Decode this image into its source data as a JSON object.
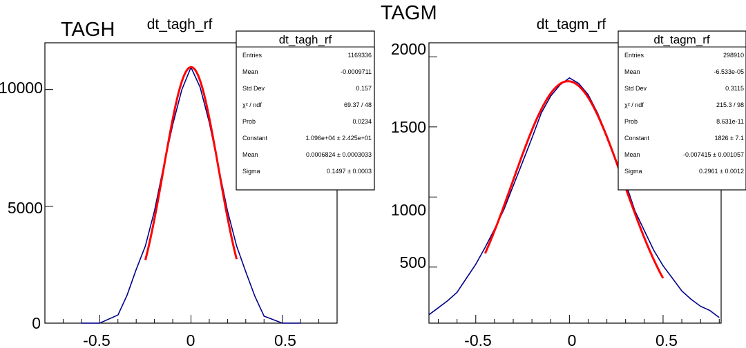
{
  "panels": [
    {
      "label": "TAGH",
      "title": "dt_tagh_rf",
      "y_tick_labels": [
        "0",
        "5000",
        "10000"
      ],
      "x_tick_labels": [
        "-0.5",
        "0",
        "0.5"
      ],
      "stats": {
        "title": "dt_tagh_rf",
        "rows": [
          {
            "name": "Entries",
            "value": "1169336"
          },
          {
            "name": "Mean",
            "value": "-0.0009711"
          },
          {
            "name": "Std Dev",
            "value": "0.157"
          },
          {
            "name": "χ² / ndf",
            "value": "69.37 / 48"
          },
          {
            "name": "Prob",
            "value": "0.0234"
          },
          {
            "name": "Constant",
            "value": "1.096e+04 ± 2.425e+01"
          },
          {
            "name": "Mean",
            "value": "0.0006824 ± 0.0003033"
          },
          {
            "name": "Sigma",
            "value": "0.1497 ± 0.0003"
          }
        ]
      }
    },
    {
      "label": "TAGM",
      "title": "dt_tagm_rf",
      "y_tick_labels": [
        "500",
        "1000",
        "1500",
        "2000"
      ],
      "x_tick_labels": [
        "-0.5",
        "0",
        "0.5"
      ],
      "stats": {
        "title": "dt_tagm_rf",
        "rows": [
          {
            "name": "Entries",
            "value": "298910"
          },
          {
            "name": "Mean",
            "value": "-6.533e-05"
          },
          {
            "name": "Std Dev",
            "value": "0.3115"
          },
          {
            "name": "χ² / ndf",
            "value": "215.3 / 98"
          },
          {
            "name": "Prob",
            "value": "8.631e-11"
          },
          {
            "name": "Constant",
            "value": "1826 ± 7.1"
          },
          {
            "name": "Mean",
            "value": "-0.007415 ± 0.001057"
          },
          {
            "name": "Sigma",
            "value": "0.2961 ± 0.0012"
          }
        ]
      }
    }
  ],
  "chart_data": [
    {
      "type": "histogram",
      "title": "dt_tagh_rf",
      "xlim": [
        -0.8,
        0.8
      ],
      "ylim": [
        0,
        12000
      ],
      "x_ticks": [
        -0.5,
        0,
        0.5
      ],
      "y_ticks": [
        0,
        5000,
        10000
      ],
      "hist_color": "#00008b",
      "fit_color": "#ff0000",
      "histogram": {
        "x": [
          -0.6,
          -0.5,
          -0.4,
          -0.35,
          -0.3,
          -0.25,
          -0.2,
          -0.15,
          -0.1,
          -0.05,
          0,
          0.05,
          0.1,
          0.15,
          0.2,
          0.25,
          0.3,
          0.35,
          0.4,
          0.5,
          0.6
        ],
        "y": [
          0,
          0,
          350,
          1200,
          2300,
          3300,
          4800,
          6700,
          8500,
          10000,
          10950,
          10100,
          8600,
          6700,
          4800,
          3300,
          2200,
          1150,
          300,
          0,
          0
        ]
      },
      "fit": {
        "function": "gaus",
        "constant": 10960,
        "mean": 0.0006824,
        "sigma": 0.1497,
        "range": [
          -0.25,
          0.25
        ]
      }
    },
    {
      "type": "histogram",
      "title": "dt_tagm_rf",
      "xlim": [
        -0.75,
        0.81
      ],
      "ylim": [
        100,
        2100
      ],
      "x_ticks": [
        -0.5,
        0,
        0.5
      ],
      "y_ticks": [
        500,
        1000,
        1500,
        2000
      ],
      "hist_color": "#00008b",
      "fit_color": "#ff0000",
      "histogram": {
        "x": [
          -0.75,
          -0.7,
          -0.65,
          -0.6,
          -0.55,
          -0.5,
          -0.45,
          -0.4,
          -0.35,
          -0.3,
          -0.25,
          -0.2,
          -0.15,
          -0.1,
          -0.05,
          0,
          0.05,
          0.1,
          0.15,
          0.2,
          0.25,
          0.3,
          0.35,
          0.4,
          0.45,
          0.5,
          0.55,
          0.6,
          0.65,
          0.7,
          0.75,
          0.8
        ],
        "y": [
          160,
          210,
          260,
          320,
          420,
          520,
          640,
          770,
          910,
          1080,
          1250,
          1420,
          1600,
          1720,
          1800,
          1850,
          1810,
          1730,
          1600,
          1440,
          1260,
          1100,
          900,
          760,
          620,
          510,
          420,
          330,
          270,
          220,
          190,
          140
        ]
      },
      "fit": {
        "function": "gaus",
        "constant": 1826,
        "mean": -0.007415,
        "sigma": 0.2961,
        "range": [
          -0.45,
          0.5
        ]
      }
    }
  ]
}
